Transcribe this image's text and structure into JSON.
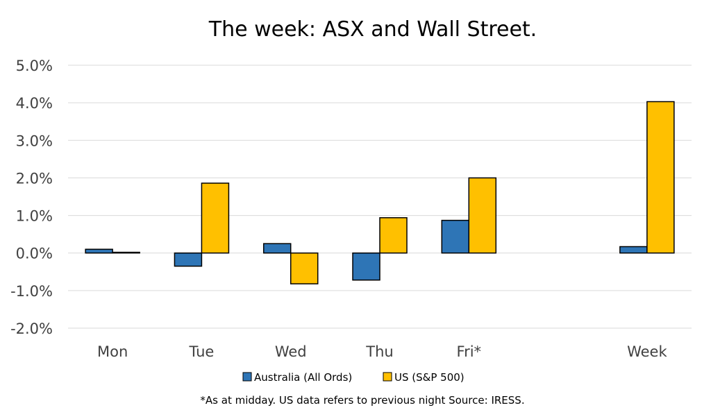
{
  "chart_data": {
    "type": "bar",
    "title": "The week:  ASX and Wall Street.",
    "categories": [
      "Mon",
      "Tue",
      "Wed",
      "Thu",
      "Fri*",
      "",
      "Week"
    ],
    "series": [
      {
        "name": "Australia (All Ords)",
        "color": "#2e75b6",
        "values": [
          0.1,
          -0.35,
          0.25,
          -0.72,
          0.87,
          null,
          0.17
        ]
      },
      {
        "name": "US (S&P 500)",
        "color": "#ffc000",
        "values": [
          0.02,
          1.86,
          -0.82,
          0.94,
          2.0,
          null,
          4.03
        ]
      }
    ],
    "ylim": [
      -2.0,
      5.0
    ],
    "yticks": [
      "5.0%",
      "4.0%",
      "3.0%",
      "2.0%",
      "1.0%",
      "0.0%",
      "-1.0%",
      "-2.0%"
    ],
    "ytick_values": [
      5,
      4,
      3,
      2,
      1,
      0,
      -1,
      -2
    ],
    "grid": true,
    "legend_position": "bottom",
    "note": "*As at midday. US data refers to previous night  Source:  IRESS."
  }
}
